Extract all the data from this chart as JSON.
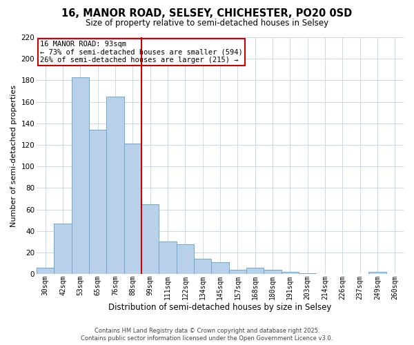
{
  "title": "16, MANOR ROAD, SELSEY, CHICHESTER, PO20 0SD",
  "subtitle": "Size of property relative to semi-detached houses in Selsey",
  "xlabel": "Distribution of semi-detached houses by size in Selsey",
  "ylabel": "Number of semi-detached properties",
  "categories": [
    "30sqm",
    "42sqm",
    "53sqm",
    "65sqm",
    "76sqm",
    "88sqm",
    "99sqm",
    "111sqm",
    "122sqm",
    "134sqm",
    "145sqm",
    "157sqm",
    "168sqm",
    "180sqm",
    "191sqm",
    "203sqm",
    "214sqm",
    "226sqm",
    "237sqm",
    "249sqm",
    "260sqm"
  ],
  "bar_heights": [
    6,
    47,
    183,
    134,
    165,
    121,
    65,
    30,
    28,
    14,
    11,
    4,
    6,
    4,
    2,
    1,
    0,
    0,
    0,
    2,
    0
  ],
  "bar_color": "#b8d0e8",
  "bar_edge_color": "#6aaad4",
  "grid_color": "#c8d8e8",
  "vline_x_index": 5.5,
  "vline_color": "#cc0000",
  "annotation_title": "16 MANOR ROAD: 93sqm",
  "annotation_line1": "← 73% of semi-detached houses are smaller (594)",
  "annotation_line2": "26% of semi-detached houses are larger (215) →",
  "annotation_box_edge": "#cc0000",
  "ylim": [
    0,
    220
  ],
  "yticks": [
    0,
    20,
    40,
    60,
    80,
    100,
    120,
    140,
    160,
    180,
    200,
    220
  ],
  "footer1": "Contains HM Land Registry data © Crown copyright and database right 2025.",
  "footer2": "Contains public sector information licensed under the Open Government Licence v3.0.",
  "bg_color": "#ffffff",
  "title_fontsize": 10.5,
  "subtitle_fontsize": 8.5
}
